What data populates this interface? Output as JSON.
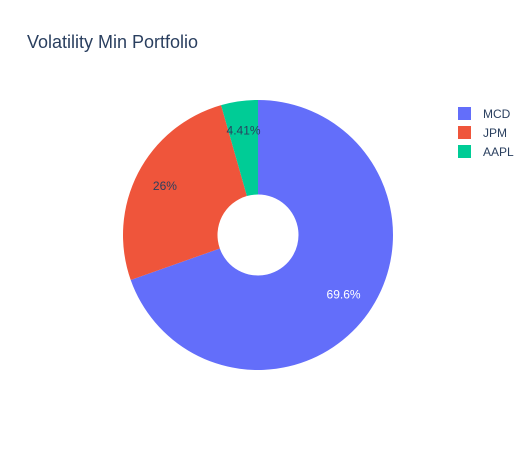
{
  "chart_data": {
    "type": "pie",
    "title": "Volatility Min Portfolio",
    "hole": 0.3,
    "categories": [
      "MCD",
      "JPM",
      "AAPL"
    ],
    "values": [
      69.6,
      26,
      4.41
    ],
    "labels": [
      "69.6%",
      "26%",
      "4.41%"
    ],
    "colors": [
      "#636efa",
      "#ef553b",
      "#00cc96"
    ],
    "label_colors": [
      "#ffffff",
      "#2a3f5f",
      "#2a3f5f"
    ],
    "legend": {
      "position": "top-right",
      "items": [
        "MCD",
        "JPM",
        "AAPL"
      ]
    }
  }
}
